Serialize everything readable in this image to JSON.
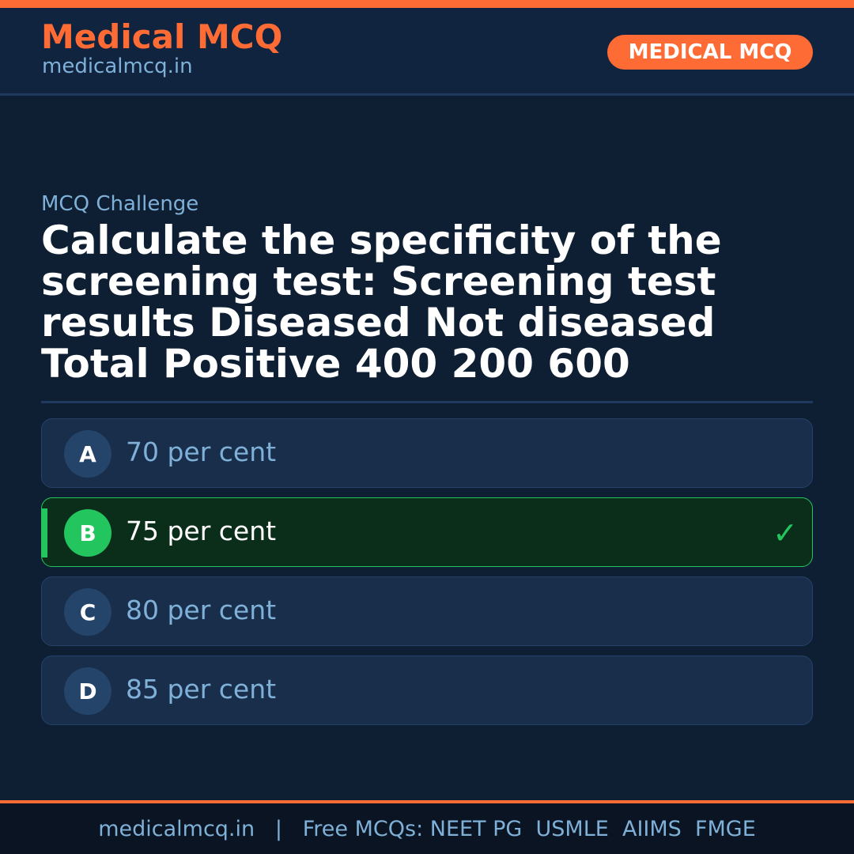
{
  "header": {
    "brand": "Medical MCQ",
    "site": "medicalmcq.in",
    "badge": "MEDICAL MCQ"
  },
  "main": {
    "eyebrow": "MCQ Challenge",
    "question": "Calculate the specificity of the screening test: Screening test results Diseased Not diseased Total Positive 400 200 600",
    "options": [
      {
        "letter": "A",
        "text": "70 per cent"
      },
      {
        "letter": "B",
        "text": "75 per cent",
        "correct": true,
        "check": "✓"
      },
      {
        "letter": "C",
        "text": "80 per cent"
      },
      {
        "letter": "D",
        "text": "85 per cent"
      }
    ]
  },
  "footer": {
    "text": "medicalmcq.in   |   Free MCQs: NEET PG  USMLE  AIIMS  FMGE"
  },
  "colors": {
    "accent": "#ff6b35",
    "correct": "#22c55e",
    "background": "#0e1e33"
  }
}
